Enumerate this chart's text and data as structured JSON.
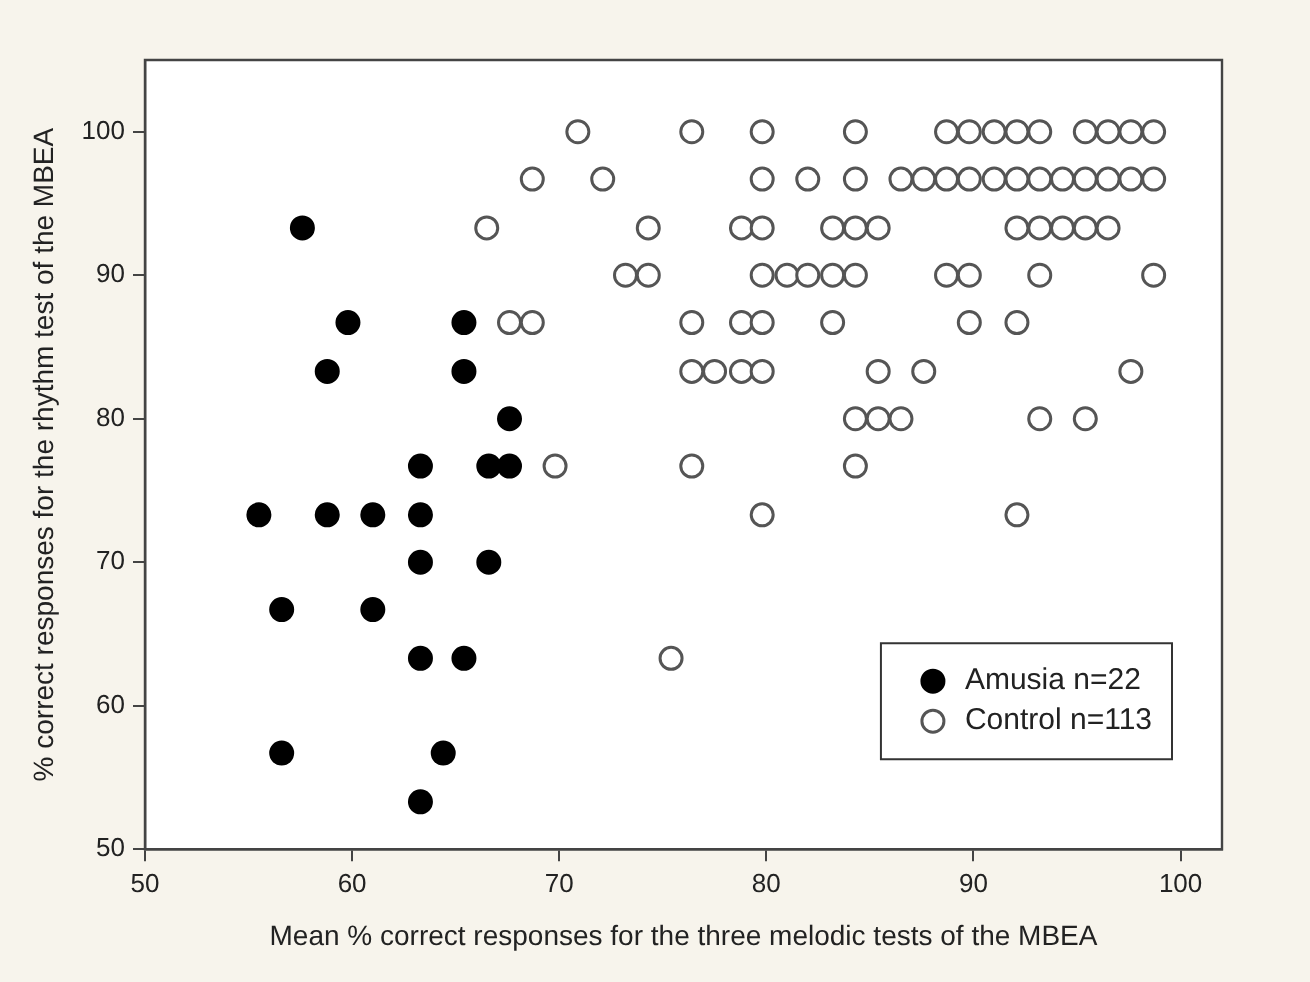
{
  "chart_data": {
    "type": "scatter",
    "xlabel": "Mean % correct responses for the three melodic tests of the MBEA",
    "ylabel": "% correct responses for the rhythm test of the MBEA",
    "xlim": [
      50,
      102
    ],
    "xticks": [
      50,
      60,
      70,
      80,
      90,
      100
    ],
    "ylim": [
      50,
      105
    ],
    "yticks": [
      50,
      60,
      70,
      80,
      90,
      100
    ],
    "grid": false,
    "legend": "bottom right",
    "marker": "circle",
    "series": [
      {
        "name": "Amusia n=22",
        "color": "#000000",
        "x": [
          57.6,
          59.8,
          58.8,
          65.4,
          65.4,
          67.6,
          63.3,
          66.6,
          67.6,
          55.5,
          58.8,
          61.0,
          63.3,
          63.3,
          66.6,
          56.6,
          61.0,
          63.3,
          65.4,
          56.6,
          64.4,
          63.3
        ],
        "values": [
          93.3,
          86.7,
          83.3,
          86.7,
          83.3,
          80,
          76.7,
          76.7,
          76.7,
          73.3,
          73.3,
          73.3,
          73.3,
          70,
          70,
          66.7,
          66.7,
          63.3,
          63.3,
          56.7,
          56.7,
          53.3
        ]
      },
      {
        "name": "Control n=113",
        "color": "#555555",
        "x": [
          70.9,
          76.4,
          79.8,
          84.3,
          88.7,
          89.8,
          91.0,
          92.1,
          93.2,
          95.4,
          96.5,
          97.6,
          98.7,
          68.7,
          72.1,
          79.8,
          82.0,
          84.3,
          86.5,
          87.6,
          88.7,
          89.8,
          91.0,
          92.1,
          93.2,
          94.3,
          95.4,
          96.5,
          97.6,
          98.7,
          66.5,
          74.3,
          78.8,
          79.8,
          83.2,
          84.3,
          85.4,
          92.1,
          93.2,
          94.3,
          95.4,
          96.5,
          73.2,
          74.3,
          79.8,
          81.0,
          82.0,
          83.2,
          84.3,
          88.7,
          89.8,
          93.2,
          98.7,
          67.6,
          68.7,
          76.4,
          78.8,
          79.8,
          83.2,
          89.8,
          92.1,
          76.4,
          77.5,
          78.8,
          79.8,
          85.4,
          87.6,
          97.6,
          84.3,
          85.4,
          86.5,
          93.2,
          95.4,
          69.8,
          76.4,
          84.3,
          79.8,
          92.1,
          75.4
        ],
        "values": [
          100,
          100,
          100,
          100,
          100,
          100,
          100,
          100,
          100,
          100,
          100,
          100,
          100,
          96.7,
          96.7,
          96.7,
          96.7,
          96.7,
          96.7,
          96.7,
          96.7,
          96.7,
          96.7,
          96.7,
          96.7,
          96.7,
          96.7,
          96.7,
          96.7,
          96.7,
          93.3,
          93.3,
          93.3,
          93.3,
          93.3,
          93.3,
          93.3,
          93.3,
          93.3,
          93.3,
          93.3,
          93.3,
          90,
          90,
          90,
          90,
          90,
          90,
          90,
          90,
          90,
          90,
          90,
          86.7,
          86.7,
          86.7,
          86.7,
          86.7,
          86.7,
          86.7,
          86.7,
          83.3,
          83.3,
          83.3,
          83.3,
          83.3,
          83.3,
          83.3,
          80,
          80,
          80,
          80,
          80,
          76.7,
          76.7,
          76.7,
          73.3,
          73.3,
          63.3
        ]
      }
    ]
  }
}
